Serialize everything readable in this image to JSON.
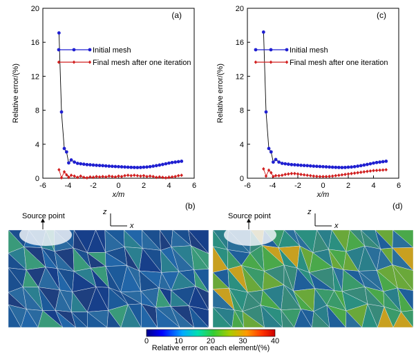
{
  "chart_data": [
    {
      "type": "line",
      "panel_label": "(a)",
      "xlabel": "x/m",
      "ylabel": "Relative error/(%)",
      "xlim": [
        -6,
        6
      ],
      "ylim": [
        0,
        20
      ],
      "xticks": [
        "-6",
        "-4",
        "-2",
        "0",
        "2",
        "4",
        "6"
      ],
      "yticks": [
        "0",
        "4",
        "8",
        "12",
        "16",
        "20"
      ],
      "legend_position": "top-right",
      "series": [
        {
          "name": "Initial mesh",
          "color": "#1f1fd1",
          "marker": "circle",
          "x": [
            -4.72,
            -4.52,
            -4.3,
            -4.12,
            -3.95,
            -3.75,
            -3.5,
            -3.25,
            -3.0,
            -2.75,
            -2.5,
            -2.25,
            -2.0,
            -1.75,
            -1.5,
            -1.25,
            -1.0,
            -0.75,
            -0.5,
            -0.25,
            0.0,
            0.25,
            0.5,
            0.75,
            1.0,
            1.25,
            1.5,
            1.75,
            2.0,
            2.25,
            2.5,
            2.75,
            3.0,
            3.25,
            3.5,
            3.75,
            4.0,
            4.25,
            4.5,
            4.75,
            5.0
          ],
          "y": [
            17.1,
            7.8,
            3.5,
            3.1,
            1.8,
            2.15,
            1.9,
            1.75,
            1.7,
            1.65,
            1.6,
            1.58,
            1.55,
            1.52,
            1.5,
            1.48,
            1.45,
            1.42,
            1.4,
            1.38,
            1.36,
            1.34,
            1.32,
            1.3,
            1.28,
            1.27,
            1.26,
            1.27,
            1.3,
            1.32,
            1.36,
            1.42,
            1.48,
            1.55,
            1.62,
            1.7,
            1.78,
            1.85,
            1.9,
            1.95,
            2.0
          ]
        },
        {
          "name": "Final mesh after one iteration",
          "color": "#d11f1f",
          "marker": "diamond",
          "x": [
            -4.72,
            -4.52,
            -4.3,
            -4.12,
            -3.95,
            -3.75,
            -3.5,
            -3.25,
            -3.0,
            -2.75,
            -2.5,
            -2.25,
            -2.0,
            -1.75,
            -1.5,
            -1.25,
            -1.0,
            -0.75,
            -0.5,
            -0.25,
            0.0,
            0.25,
            0.5,
            0.75,
            1.0,
            1.25,
            1.5,
            1.75,
            2.0,
            2.25,
            2.5,
            2.75,
            3.0,
            3.25,
            3.5,
            3.75,
            4.0,
            4.25,
            4.5,
            4.75,
            5.0
          ],
          "y": [
            1.0,
            0.05,
            0.75,
            0.4,
            0.1,
            0.35,
            0.25,
            0.1,
            0.25,
            0.1,
            0.05,
            0.15,
            0.1,
            0.2,
            0.15,
            0.2,
            0.15,
            0.25,
            0.2,
            0.15,
            0.25,
            0.2,
            0.3,
            0.35,
            0.3,
            0.35,
            0.3,
            0.25,
            0.3,
            0.2,
            0.25,
            0.2,
            0.1,
            0.15,
            0.1,
            0.05,
            0.1,
            0.15,
            0.2,
            0.3,
            0.35
          ]
        }
      ]
    },
    {
      "type": "line",
      "panel_label": "(c)",
      "xlabel": "x/m",
      "ylabel": "Relative error/(%)",
      "xlim": [
        -6,
        6
      ],
      "ylim": [
        0,
        20
      ],
      "xticks": [
        "-6",
        "-4",
        "-2",
        "0",
        "2",
        "4",
        "6"
      ],
      "yticks": [
        "0",
        "4",
        "8",
        "12",
        "16",
        "20"
      ],
      "legend_position": "top-right",
      "series": [
        {
          "name": "Initial mesh",
          "color": "#1f1fd1",
          "marker": "circle",
          "x": [
            -4.72,
            -4.52,
            -4.3,
            -4.12,
            -3.95,
            -3.75,
            -3.5,
            -3.25,
            -3.0,
            -2.75,
            -2.5,
            -2.25,
            -2.0,
            -1.75,
            -1.5,
            -1.25,
            -1.0,
            -0.75,
            -0.5,
            -0.25,
            0.0,
            0.25,
            0.5,
            0.75,
            1.0,
            1.25,
            1.5,
            1.75,
            2.0,
            2.25,
            2.5,
            2.75,
            3.0,
            3.25,
            3.5,
            3.75,
            4.0,
            4.25,
            4.5,
            4.75,
            5.0
          ],
          "y": [
            17.2,
            7.8,
            3.5,
            3.1,
            1.9,
            2.2,
            1.9,
            1.75,
            1.7,
            1.65,
            1.6,
            1.58,
            1.55,
            1.52,
            1.5,
            1.48,
            1.45,
            1.42,
            1.4,
            1.38,
            1.36,
            1.34,
            1.32,
            1.3,
            1.28,
            1.27,
            1.26,
            1.27,
            1.3,
            1.32,
            1.36,
            1.42,
            1.48,
            1.55,
            1.62,
            1.7,
            1.78,
            1.85,
            1.9,
            1.95,
            2.0
          ]
        },
        {
          "name": "Final mesh after one iteration",
          "color": "#d11f1f",
          "marker": "diamond",
          "x": [
            -4.72,
            -4.52,
            -4.3,
            -4.12,
            -3.95,
            -3.75,
            -3.5,
            -3.25,
            -3.0,
            -2.75,
            -2.5,
            -2.25,
            -2.0,
            -1.75,
            -1.5,
            -1.25,
            -1.0,
            -0.75,
            -0.5,
            -0.25,
            0.0,
            0.25,
            0.5,
            0.75,
            1.0,
            1.25,
            1.5,
            1.75,
            2.0,
            2.25,
            2.5,
            2.75,
            3.0,
            3.25,
            3.5,
            3.75,
            4.0,
            4.25,
            4.5,
            4.75,
            5.0
          ],
          "y": [
            1.1,
            0.25,
            0.95,
            0.65,
            0.2,
            0.3,
            0.3,
            0.35,
            0.45,
            0.5,
            0.55,
            0.55,
            0.5,
            0.45,
            0.4,
            0.35,
            0.3,
            0.25,
            0.22,
            0.2,
            0.2,
            0.2,
            0.22,
            0.25,
            0.3,
            0.35,
            0.4,
            0.45,
            0.5,
            0.55,
            0.6,
            0.65,
            0.7,
            0.75,
            0.8,
            0.85,
            0.9,
            0.92,
            0.95,
            0.97,
            1.0
          ]
        }
      ]
    }
  ],
  "mesh_panels": [
    {
      "panel_label": "(b)",
      "source_label": "Source point",
      "axis_z": "z",
      "axis_x": "x"
    },
    {
      "panel_label": "(d)",
      "source_label": "Source point",
      "axis_z": "z",
      "axis_x": "x"
    }
  ],
  "colorbar": {
    "title": "Relative error on each element/(%)",
    "ticks": [
      "0",
      "10",
      "20",
      "30",
      "40"
    ],
    "range": [
      0,
      40
    ],
    "colors": [
      "#00008b",
      "#0000ff",
      "#00aaff",
      "#00e0b0",
      "#33cc33",
      "#aacc00",
      "#ff9900",
      "#ff3300",
      "#cc0000"
    ]
  }
}
